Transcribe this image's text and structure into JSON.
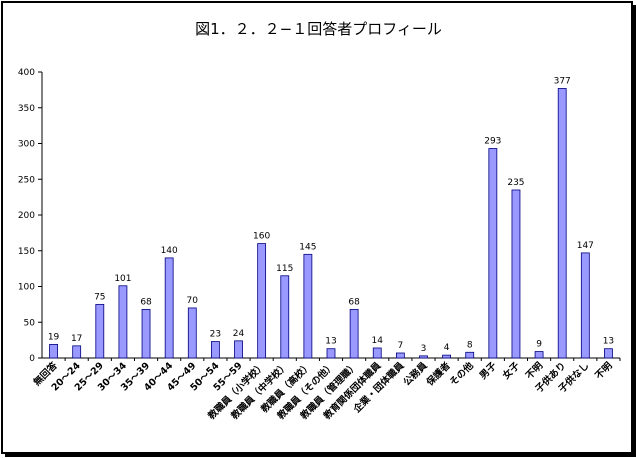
{
  "chart_data": {
    "type": "bar",
    "title": "図1．２．２−１回答者プロフィール",
    "xlabel": "",
    "ylabel": "",
    "ylim": [
      0,
      400
    ],
    "yticks": [
      0,
      50,
      100,
      150,
      200,
      250,
      300,
      350,
      400
    ],
    "grid": false,
    "legend": "none",
    "categories": [
      "無回答",
      "20〜24",
      "25〜29",
      "30〜34",
      "35〜39",
      "40〜44",
      "45〜49",
      "50〜54",
      "55〜59",
      "教職員（小学校）",
      "教職員（中学校）",
      "教職員（高校）",
      "教職員（その他）",
      "教職員（管理職）",
      "教育関係団体職員",
      "企業・団体職員",
      "公務員",
      "保護者",
      "その他",
      "男子",
      "女子",
      "不明",
      "子供あり",
      "子供なし",
      "不明"
    ],
    "values": [
      19,
      17,
      75,
      101,
      68,
      140,
      70,
      23,
      24,
      160,
      115,
      145,
      13,
      68,
      14,
      7,
      3,
      4,
      8,
      293,
      235,
      9,
      377,
      147,
      13
    ],
    "colors": {
      "bar_fill": "#9999ff",
      "bar_stroke": "#000080"
    }
  }
}
